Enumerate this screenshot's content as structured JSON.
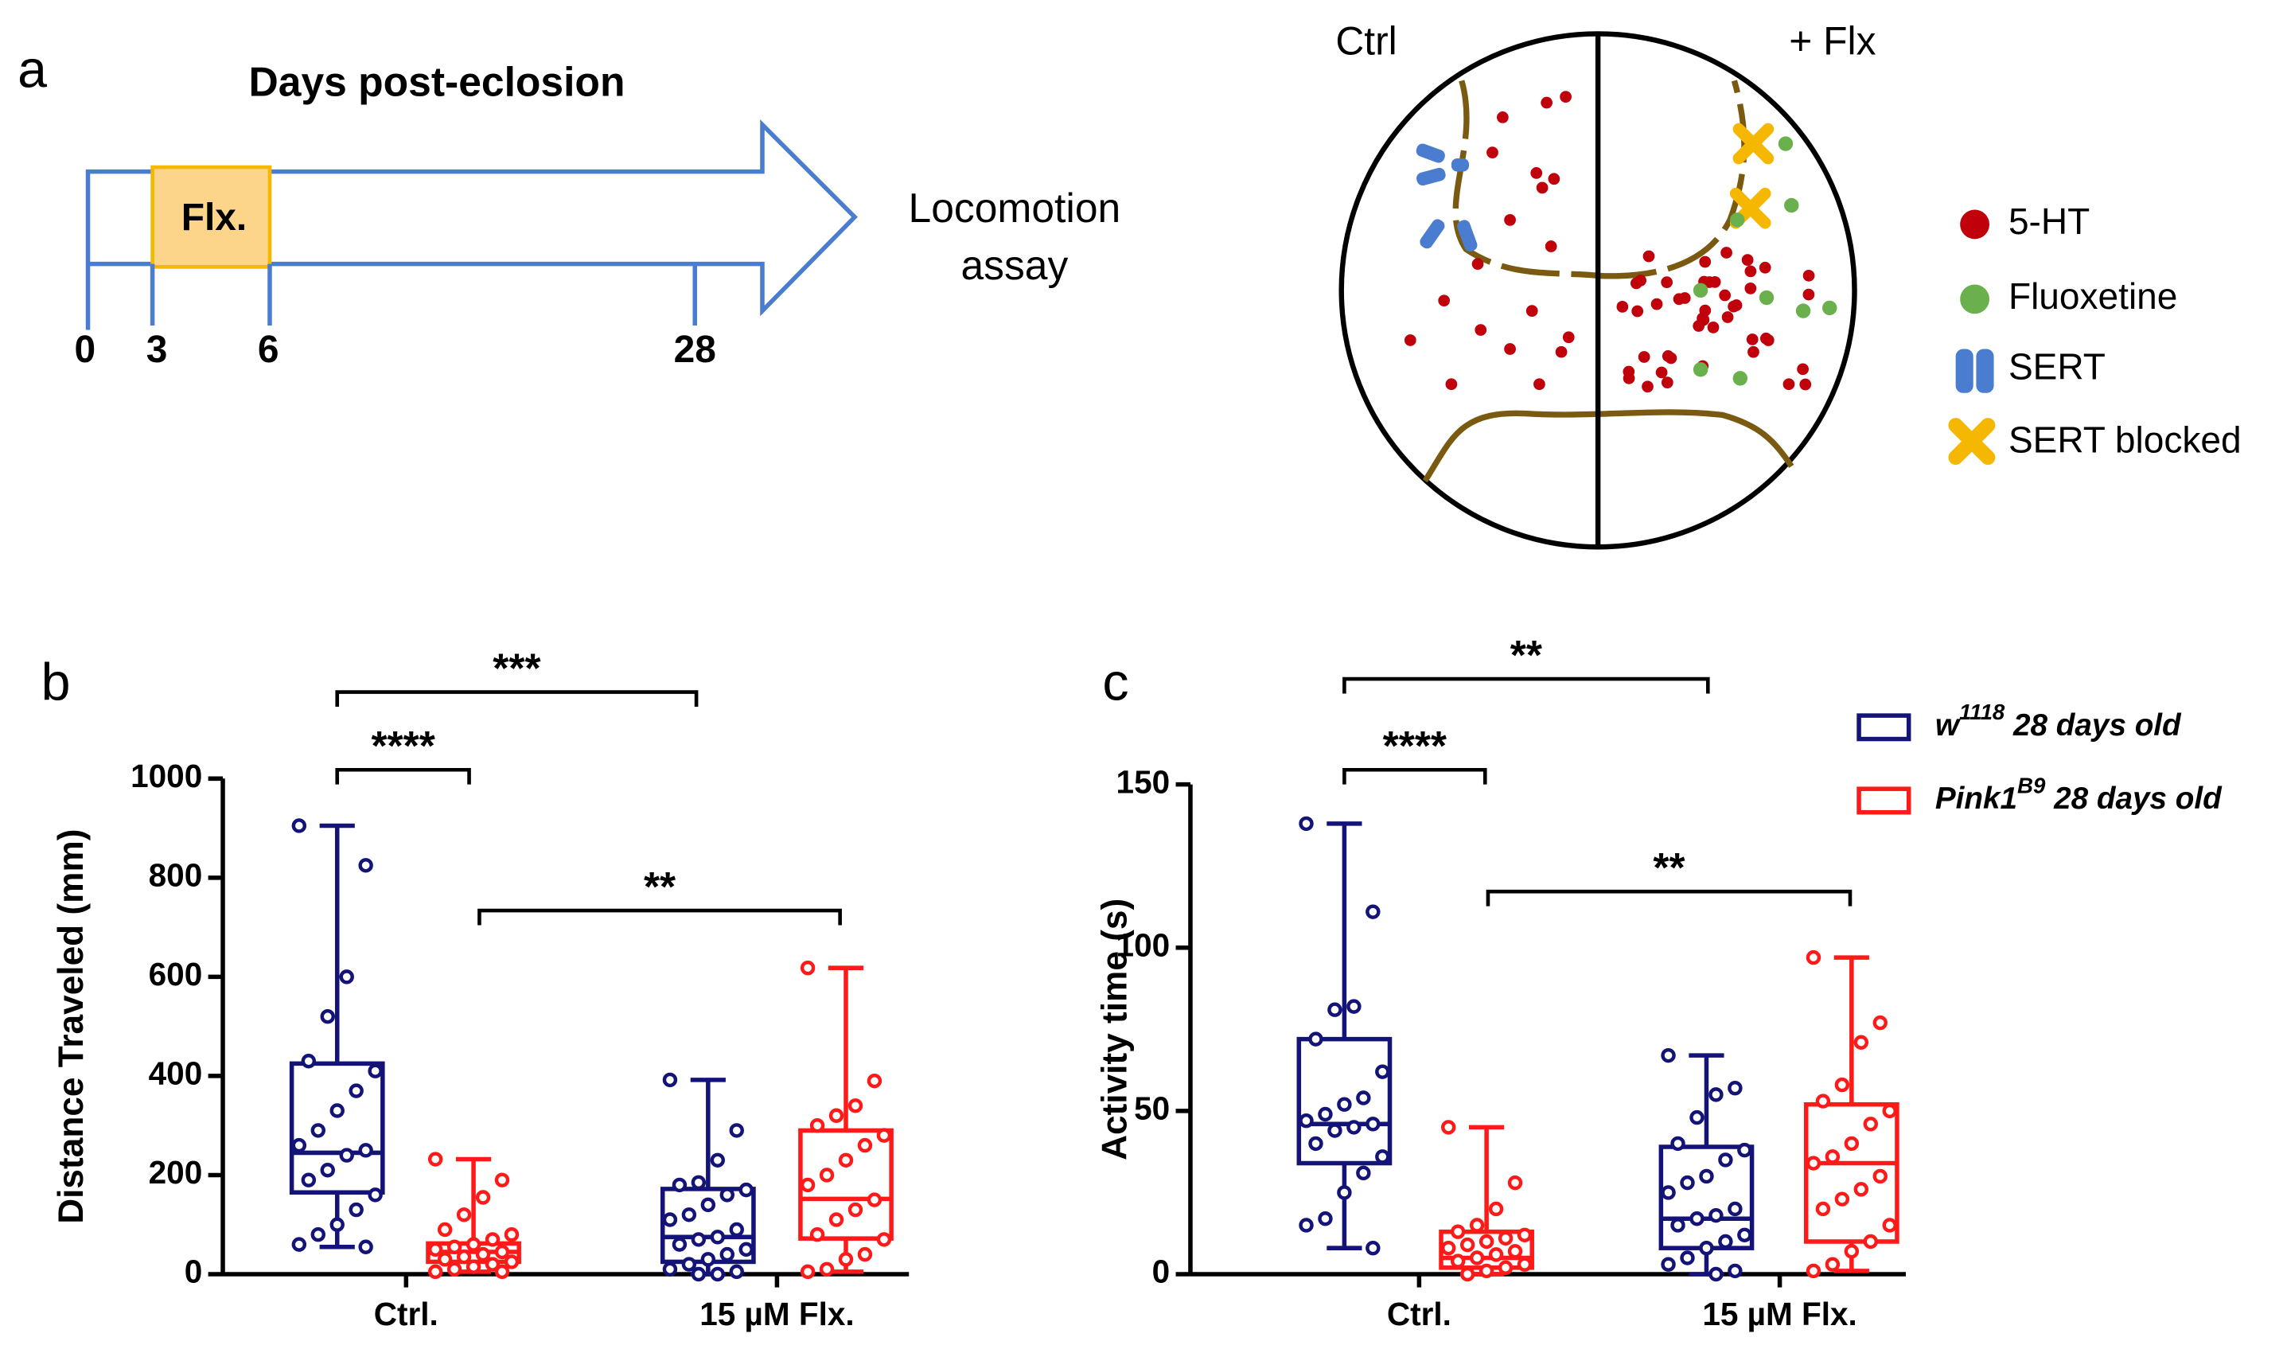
{
  "panel_a": {
    "label": "a",
    "title": "Days post-eclosion",
    "box_label": "Flx.",
    "assay": [
      "Locomotion",
      "assay"
    ],
    "ticks": [
      "0",
      "3",
      "6",
      "28"
    ],
    "ctrl": "Ctrl",
    "flx": "+ Flx",
    "legend": [
      "5-HT",
      "Fluoxetine",
      "SERT",
      "SERT blocked"
    ]
  },
  "chart_data": [
    {
      "type": "box",
      "label": "b",
      "y_label": "Distance Traveled (mm)",
      "ylim": [
        0,
        1000
      ],
      "yticks": [
        0,
        200,
        400,
        600,
        800,
        1000
      ],
      "categories": [
        "Ctrl.",
        "15 µM Flx."
      ],
      "series": [
        {
          "color": "#141478",
          "boxes": [
            {
              "min": 55,
              "q1": 165,
              "median": 245,
              "q3": 425,
              "max": 905
            },
            {
              "min": 0,
              "q1": 25,
              "median": 75,
              "q3": 172,
              "max": 392
            }
          ],
          "points": [
            [
              905,
              825,
              600,
              520,
              430,
              410,
              370,
              330,
              290,
              260,
              250,
              240,
              210,
              190,
              160,
              130,
              100,
              80,
              60,
              55
            ],
            [
              392,
              290,
              230,
              185,
              180,
              170,
              160,
              140,
              120,
              110,
              90,
              75,
              70,
              60,
              50,
              40,
              30,
              20,
              10,
              5,
              0,
              0
            ]
          ]
        },
        {
          "color": "#ff1a1a",
          "boxes": [
            {
              "min": 5,
              "q1": 25,
              "median": 45,
              "q3": 62,
              "max": 232
            },
            {
              "min": 5,
              "q1": 72,
              "median": 152,
              "q3": 290,
              "max": 618
            }
          ],
          "points": [
            [
              232,
              190,
              155,
              120,
              90,
              80,
              70,
              60,
              55,
              50,
              45,
              40,
              35,
              30,
              25,
              20,
              15,
              10,
              5,
              5
            ],
            [
              618,
              390,
              340,
              320,
              300,
              280,
              260,
              230,
              200,
              180,
              150,
              130,
              110,
              80,
              70,
              40,
              30,
              10,
              5
            ]
          ]
        }
      ],
      "annotations": [
        "***",
        "****",
        "**"
      ]
    },
    {
      "type": "box",
      "label": "c",
      "y_label": "Activity time (s)",
      "ylim": [
        0,
        150
      ],
      "yticks": [
        0,
        50,
        100,
        150
      ],
      "categories": [
        "Ctrl.",
        "15 µM Flx."
      ],
      "series": [
        {
          "name": [
            "w",
            "1118",
            " 28 days old"
          ],
          "color": "#141478",
          "boxes": [
            {
              "min": 8,
              "q1": 34,
              "median": 46,
              "q3": 72,
              "max": 138
            },
            {
              "min": 0,
              "q1": 8,
              "median": 17,
              "q3": 39,
              "max": 67
            }
          ],
          "points": [
            [
              138,
              111,
              82,
              81,
              72,
              62,
              54,
              52,
              49,
              47,
              46,
              45,
              44,
              40,
              36,
              31,
              25,
              17,
              15,
              8
            ],
            [
              67,
              57,
              55,
              48,
              40,
              38,
              35,
              30,
              28,
              25,
              20,
              18,
              17,
              15,
              12,
              10,
              8,
              5,
              3,
              1,
              0
            ]
          ]
        },
        {
          "name": [
            "Pink1",
            "B9",
            " 28 days old"
          ],
          "color": "#ff1a1a",
          "boxes": [
            {
              "min": 0,
              "q1": 2,
              "median": 5,
              "q3": 13,
              "max": 45
            },
            {
              "min": 1,
              "q1": 10,
              "median": 34,
              "q3": 52,
              "max": 97
            }
          ],
          "points": [
            [
              45,
              28,
              20,
              15,
              13,
              12,
              11,
              10,
              9,
              8,
              7,
              6,
              5,
              4,
              3,
              2,
              1,
              0
            ],
            [
              97,
              77,
              71,
              58,
              53,
              50,
              46,
              40,
              36,
              34,
              30,
              26,
              23,
              20,
              15,
              10,
              7,
              3,
              1
            ]
          ]
        }
      ],
      "annotations": [
        "**",
        "****",
        "**"
      ]
    }
  ]
}
